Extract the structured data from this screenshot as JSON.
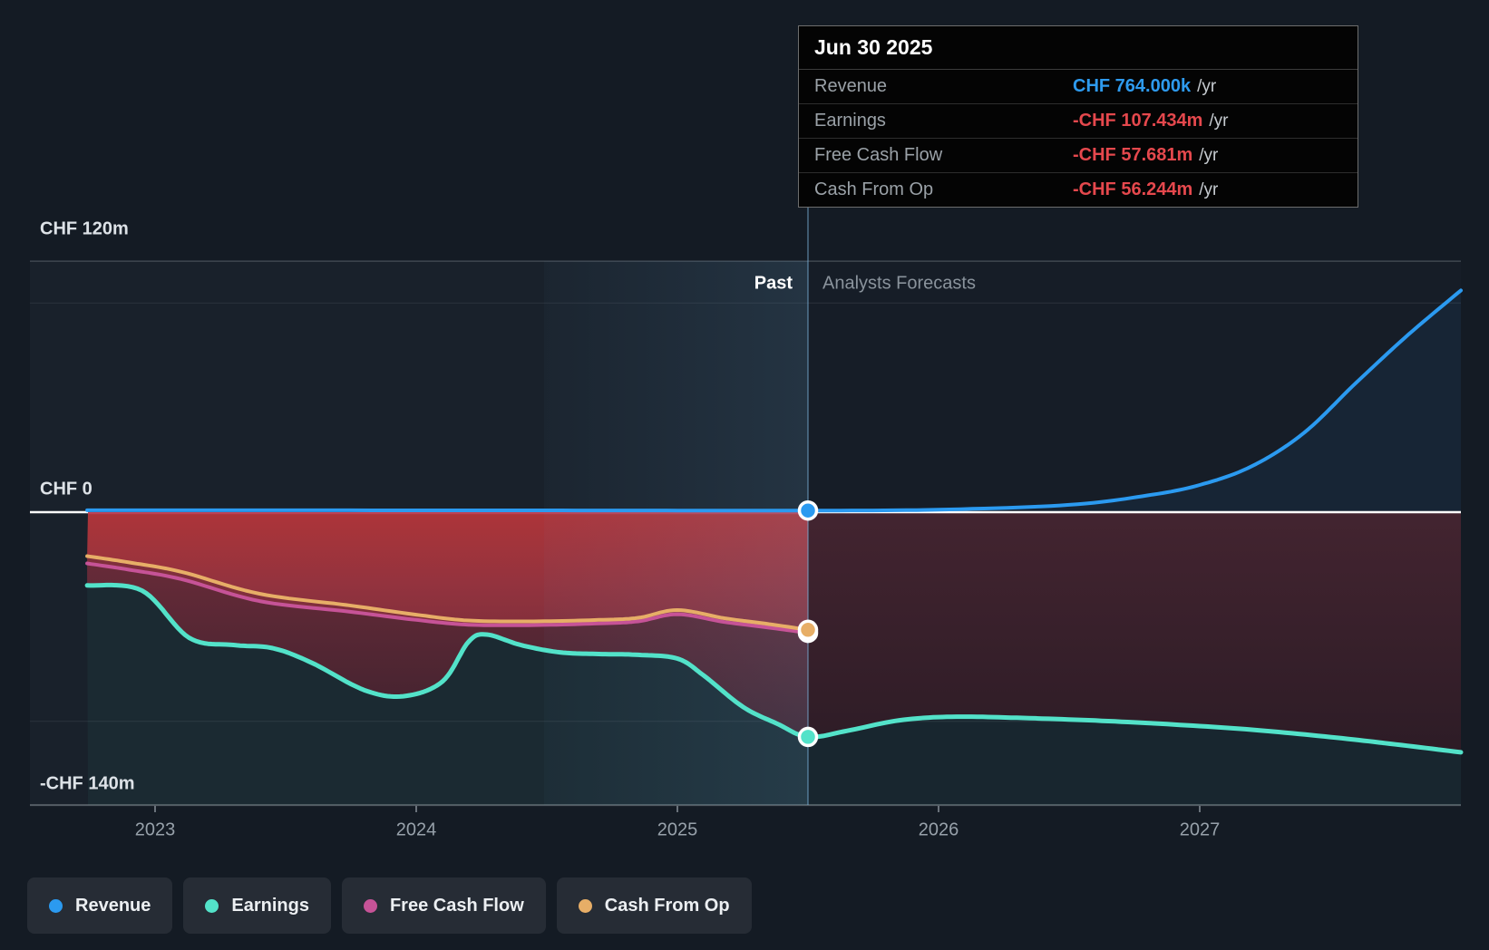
{
  "tooltip": {
    "date": "Jun 30 2025",
    "rows": [
      {
        "label": "Revenue",
        "value": "CHF 764.000k",
        "unit": "/yr",
        "color": "#2e9bef"
      },
      {
        "label": "Earnings",
        "value": "-CHF 107.434m",
        "unit": "/yr",
        "color": "#e5484d"
      },
      {
        "label": "Free Cash Flow",
        "value": "-CHF 57.681m",
        "unit": "/yr",
        "color": "#e5484d"
      },
      {
        "label": "Cash From Op",
        "value": "-CHF 56.244m",
        "unit": "/yr",
        "color": "#e5484d"
      }
    ]
  },
  "chart_data": {
    "type": "area",
    "title": "",
    "ylabel": "CHF",
    "y_axis_labels": [
      "CHF 120m",
      "CHF 0",
      "-CHF 140m"
    ],
    "ylim": [
      -140,
      120
    ],
    "gridlines_m": [
      120,
      100,
      0,
      -100,
      -140
    ],
    "x_ticks": [
      2023,
      2024,
      2025,
      2026,
      2027
    ],
    "x_range": [
      2022.74,
      2028
    ],
    "divider_x": 2025.5,
    "past_label": "Past",
    "forecast_label": "Analysts Forecasts",
    "units": "CHF millions per year",
    "series": [
      {
        "name": "Revenue",
        "color": "#2b9af0",
        "width": 4,
        "forecast_from": 2025.5,
        "x": [
          2022.74,
          2023.5,
          2024.5,
          2025.0,
          2025.5,
          2026.0,
          2026.5,
          2026.8,
          2027.0,
          2027.2,
          2027.4,
          2027.6,
          2027.8,
          2028.0
        ],
        "values": [
          0.9,
          0.9,
          0.85,
          0.8,
          0.764,
          1.2,
          3.5,
          8,
          13,
          22,
          38,
          62,
          85,
          106
        ]
      },
      {
        "name": "Earnings",
        "color": "#53e2c9",
        "width": 5,
        "forecast_from": 2025.5,
        "x": [
          2022.74,
          2022.95,
          2023.13,
          2023.3,
          2023.45,
          2023.6,
          2023.8,
          2023.95,
          2024.1,
          2024.2,
          2024.27,
          2024.4,
          2024.55,
          2024.7,
          2024.85,
          2025.0,
          2025.1,
          2025.25,
          2025.38,
          2025.5,
          2025.65,
          2025.85,
          2026.05,
          2026.3,
          2026.6,
          2026.9,
          2027.2,
          2027.5,
          2027.75,
          2028.0
        ],
        "values": [
          -35,
          -37.5,
          -60,
          -63.5,
          -65,
          -72,
          -85,
          -88,
          -81,
          -62,
          -58.5,
          -63.5,
          -67,
          -67.8,
          -68.2,
          -70,
          -78,
          -93,
          -101,
          -107.434,
          -104.5,
          -99.5,
          -97.8,
          -98.3,
          -99.6,
          -101.5,
          -104,
          -107.5,
          -111,
          -114.8
        ]
      },
      {
        "name": "Free Cash Flow",
        "color": "#c65397",
        "width": 4,
        "forecast_from": null,
        "x": [
          2022.74,
          2022.9,
          2023.1,
          2023.4,
          2023.74,
          2024.0,
          2024.2,
          2024.45,
          2024.7,
          2024.85,
          2025.0,
          2025.18,
          2025.35,
          2025.5
        ],
        "values": [
          -24.5,
          -27.5,
          -32,
          -42.5,
          -47.5,
          -51.5,
          -53.8,
          -54,
          -53.2,
          -52.2,
          -48.8,
          -52.5,
          -55.2,
          -57.681
        ]
      },
      {
        "name": "Cash From Op",
        "color": "#e7ae67",
        "width": 4,
        "forecast_from": null,
        "x": [
          2022.74,
          2022.9,
          2023.1,
          2023.4,
          2023.74,
          2024.0,
          2024.2,
          2024.45,
          2024.7,
          2024.85,
          2025.0,
          2025.18,
          2025.35,
          2025.5
        ],
        "values": [
          -21,
          -24,
          -28.5,
          -39,
          -44.5,
          -49,
          -51.8,
          -52.2,
          -51.5,
          -50.5,
          -46.8,
          -50.7,
          -53.5,
          -56.244
        ]
      }
    ],
    "markers_at_divider": [
      {
        "series": "Revenue",
        "value": 0.764
      },
      {
        "series": "Cash From Op",
        "value": -56.244
      },
      {
        "series": "Free Cash Flow",
        "value": -57.681
      },
      {
        "series": "Earnings",
        "value": -107.434
      }
    ]
  },
  "legend": {
    "items": [
      {
        "label": "Revenue",
        "color": "#2b9af0"
      },
      {
        "label": "Earnings",
        "color": "#53e2c9"
      },
      {
        "label": "Free Cash Flow",
        "color": "#c65397"
      },
      {
        "label": "Cash From Op",
        "color": "#e7ae67"
      }
    ]
  }
}
